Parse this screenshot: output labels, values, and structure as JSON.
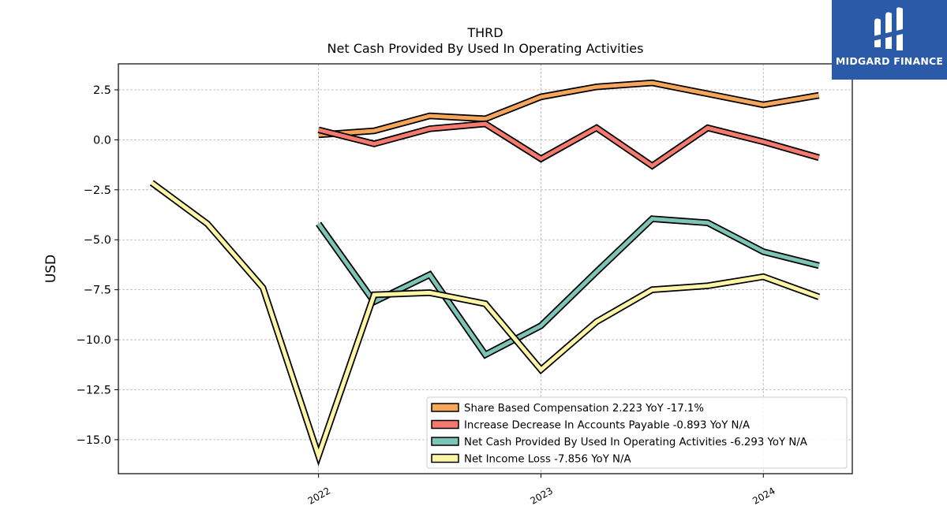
{
  "brand": {
    "name": "MIDGARD FINANCE"
  },
  "chart_data": {
    "type": "line",
    "title": "THRD",
    "subtitle": "Net Cash Provided By Used In Operating Activities",
    "xlabel": "",
    "ylabel": "USD",
    "ylim": [
      -16.7,
      3.8
    ],
    "xlim": [
      2021.1,
      2024.4
    ],
    "x_ticks": [
      {
        "value": 2022,
        "label": "2022"
      },
      {
        "value": 2023,
        "label": "2023"
      },
      {
        "value": 2024,
        "label": "2024"
      }
    ],
    "y_ticks": [
      {
        "value": 2.5,
        "label": "2.5"
      },
      {
        "value": 0,
        "label": "0.0"
      },
      {
        "value": -2.5,
        "label": "−2.5"
      },
      {
        "value": -5,
        "label": "−5.0"
      },
      {
        "value": -7.5,
        "label": "−7.5"
      },
      {
        "value": -10,
        "label": "−10.0"
      },
      {
        "value": -12.5,
        "label": "−12.5"
      },
      {
        "value": -15,
        "label": "−15.0"
      }
    ],
    "grid": true,
    "legend_position": "bottom-right",
    "series": [
      {
        "name": "Share Based Compensation  2.223 YoY -17.1%",
        "color": "#f5a65b",
        "points": [
          [
            2022.0,
            0.25
          ],
          [
            2022.25,
            0.45
          ],
          [
            2022.5,
            1.2
          ],
          [
            2022.75,
            1.05
          ],
          [
            2023.0,
            2.15
          ],
          [
            2023.25,
            2.65
          ],
          [
            2023.5,
            2.85
          ],
          [
            2023.75,
            2.3
          ],
          [
            2024.0,
            1.75
          ],
          [
            2024.25,
            2.223
          ]
        ]
      },
      {
        "name": "Increase Decrease In Accounts Payable  -0.893 YoY N/A",
        "color": "#f47a6e",
        "points": [
          [
            2022.0,
            0.5
          ],
          [
            2022.25,
            -0.2
          ],
          [
            2022.5,
            0.55
          ],
          [
            2022.75,
            0.8
          ],
          [
            2023.0,
            -0.95
          ],
          [
            2023.25,
            0.6
          ],
          [
            2023.5,
            -1.3
          ],
          [
            2023.75,
            0.6
          ],
          [
            2024.0,
            -0.1
          ],
          [
            2024.25,
            -0.893
          ]
        ]
      },
      {
        "name": "Net Cash Provided By Used In Operating Activities  -6.293 YoY N/A",
        "color": "#7cc4b6",
        "points": [
          [
            2022.0,
            -4.2
          ],
          [
            2022.25,
            -8.1
          ],
          [
            2022.5,
            -6.75
          ],
          [
            2022.75,
            -10.75
          ],
          [
            2023.0,
            -9.3
          ],
          [
            2023.25,
            -6.6
          ],
          [
            2023.5,
            -3.95
          ],
          [
            2023.75,
            -4.15
          ],
          [
            2024.0,
            -5.6
          ],
          [
            2024.25,
            -6.293
          ]
        ]
      },
      {
        "name": "Net Income Loss  -7.856 YoY N/A",
        "color": "#fdf5a6",
        "points": [
          [
            2021.25,
            -2.15
          ],
          [
            2021.5,
            -4.2
          ],
          [
            2021.75,
            -7.4
          ],
          [
            2022.0,
            -15.8
          ],
          [
            2022.25,
            -7.75
          ],
          [
            2022.5,
            -7.65
          ],
          [
            2022.75,
            -8.2
          ],
          [
            2023.0,
            -11.5
          ],
          [
            2023.25,
            -9.1
          ],
          [
            2023.5,
            -7.5
          ],
          [
            2023.75,
            -7.3
          ],
          [
            2024.0,
            -6.85
          ],
          [
            2024.25,
            -7.856
          ]
        ]
      }
    ]
  }
}
